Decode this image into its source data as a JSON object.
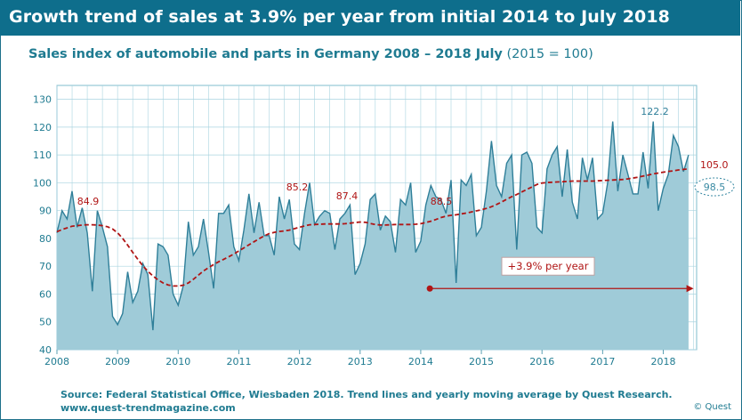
{
  "header": {
    "title": "Growth trend of sales at 3.9% per year from initial 2014 to July 2018"
  },
  "subtitle": {
    "main": "Sales index  of automobile and parts in Germany 2008 – 2018  July",
    "unit": "(2015 = 100)"
  },
  "footer": {
    "source": "Source: Federal Statistical Office, Wiesbaden 2018. Trend lines and yearly moving average by Quest Research.",
    "website": "www.quest-trendmagazine.com",
    "copyright": "© Quest"
  },
  "colors": {
    "header": "#0e6e8c",
    "area_fill": "#9fcbd8",
    "line": "#2f7f99",
    "moving_avg": "#b01515",
    "grid": "#a9d4e0",
    "text": "#1f7b91"
  },
  "chart_data": {
    "type": "area",
    "title": "Sales index  of automobile and parts in Germany 2008 – 2018  July",
    "ylim": [
      40,
      135
    ],
    "yticks": [
      40,
      50,
      60,
      70,
      80,
      90,
      100,
      110,
      120,
      130
    ],
    "xlim": [
      2008,
      2018.55
    ],
    "xticks": [
      "2008",
      "2009",
      "2010",
      "2011",
      "2012",
      "2013",
      "2014",
      "2015",
      "2016",
      "2017",
      "2018"
    ],
    "series": [
      {
        "kind": "monthly",
        "x_start": 2008.0,
        "x_step_months": 1,
        "values": [
          82,
          90,
          87,
          97,
          84,
          91,
          82,
          61,
          90,
          84,
          77,
          52,
          49,
          53,
          68,
          57,
          61,
          71,
          67,
          47,
          78,
          77,
          74,
          60,
          56,
          63,
          86,
          74,
          77,
          87,
          75,
          62,
          89,
          89,
          92,
          77,
          72,
          83,
          96,
          82,
          93,
          81,
          81,
          74,
          95,
          87,
          94,
          78,
          76,
          89,
          100,
          85,
          88,
          90,
          89,
          76,
          87,
          89,
          92,
          67,
          71,
          78,
          94,
          96,
          83,
          88,
          86,
          75,
          94,
          92,
          100,
          75,
          79,
          92,
          99,
          95,
          94,
          89,
          101,
          64,
          101,
          99,
          103,
          81,
          84,
          97,
          115,
          99,
          95,
          107,
          110,
          76,
          110,
          111,
          107,
          84,
          82,
          105,
          110,
          113,
          95,
          112,
          93,
          87,
          109,
          101,
          109,
          87,
          89,
          100,
          122,
          97,
          110,
          103,
          96,
          96,
          111,
          98,
          122,
          90,
          98,
          103,
          117,
          113,
          104,
          110
        ]
      },
      {
        "name": "yearly moving average",
        "kind": "monthly",
        "x_start": 2008.0,
        "x_step_months": 1,
        "values": [
          82.4,
          83.2,
          83.8,
          84.4,
          84.6,
          84.8,
          84.9,
          84.9,
          84.8,
          84.6,
          84.2,
          83.4,
          82.0,
          80.0,
          77.6,
          75.0,
          72.5,
          70.2,
          68.2,
          66.5,
          65.1,
          64.0,
          63.3,
          62.9,
          62.9,
          63.2,
          64.0,
          65.3,
          66.8,
          68.3,
          69.5,
          70.6,
          71.6,
          72.5,
          73.4,
          74.4,
          75.5,
          76.6,
          77.7,
          78.8,
          79.9,
          80.9,
          81.7,
          82.2,
          82.5,
          82.7,
          83.0,
          83.5,
          84.0,
          84.5,
          84.9,
          85.0,
          85.1,
          85.2,
          85.2,
          85.2,
          85.2,
          85.3,
          85.5,
          85.7,
          85.9,
          85.8,
          85.4,
          85.0,
          84.8,
          84.8,
          84.9,
          85.0,
          85.0,
          85.0,
          85.0,
          85.1,
          85.3,
          85.7,
          86.2,
          86.8,
          87.5,
          88.0,
          88.3,
          88.5,
          88.8,
          89.1,
          89.5,
          89.9,
          90.3,
          90.8,
          91.4,
          92.2,
          93.1,
          94.1,
          95.0,
          95.8,
          96.7,
          97.6,
          98.5,
          99.4,
          99.9,
          100.1,
          100.2,
          100.3,
          100.4,
          100.5,
          100.6,
          100.6,
          100.6,
          100.6,
          100.6,
          100.7,
          100.8,
          100.9,
          101.0,
          101.1,
          101.2,
          101.4,
          101.7,
          102.0,
          102.4,
          102.8,
          103.2,
          103.5,
          103.8,
          104.1,
          104.3,
          104.6,
          104.8,
          105.0
        ]
      }
    ],
    "annotations": [
      {
        "label": "84.9",
        "x": 2008.5,
        "y": 84.9
      },
      {
        "label": "85.2",
        "x": 2011.95,
        "y": 85.2
      },
      {
        "label": "87.4",
        "x": 2012.75,
        "y": 87.4
      },
      {
        "label": "88.5",
        "x": 2014.25,
        "y": 88.5
      },
      {
        "label": "122.2",
        "x": 2017.78,
        "y": 122.2
      },
      {
        "label": "105.0",
        "x": 2018.45,
        "y": 105.0
      },
      {
        "label": "98.5",
        "x": 2018.45,
        "y": 98.5
      }
    ],
    "trend": {
      "label": "+3.9% per year",
      "x_start": 2014.15,
      "x_end": 2018.5,
      "y": 62
    }
  }
}
